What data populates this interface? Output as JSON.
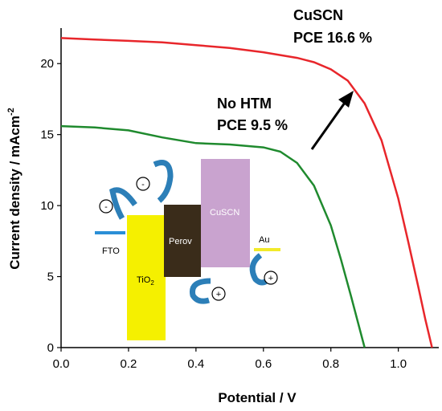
{
  "chart_data": {
    "type": "line",
    "xlabel": "Potential / V",
    "ylabel": "Current density / mAcm",
    "ylabel_sup": "-2",
    "xlim": [
      0.0,
      1.12
    ],
    "ylim": [
      0,
      22.5
    ],
    "xticks": [
      "0.0",
      "0.2",
      "0.4",
      "0.6",
      "0.8",
      "1.0"
    ],
    "xtick_values": [
      0.0,
      0.2,
      0.4,
      0.6,
      0.8,
      1.0
    ],
    "yticks": [
      "0",
      "5",
      "10",
      "15",
      "20"
    ],
    "ytick_values": [
      0,
      5,
      10,
      15,
      20
    ],
    "grid": false,
    "series": [
      {
        "color": "#e8262b",
        "x": [
          0.0,
          0.1,
          0.2,
          0.3,
          0.4,
          0.5,
          0.6,
          0.7,
          0.75,
          0.8,
          0.85,
          0.9,
          0.95,
          1.0,
          1.03,
          1.06,
          1.08,
          1.1
        ],
        "y": [
          21.8,
          21.7,
          21.6,
          21.5,
          21.3,
          21.1,
          20.8,
          20.4,
          20.1,
          19.6,
          18.8,
          17.2,
          14.6,
          10.5,
          7.4,
          4.2,
          2.0,
          0
        ]
      },
      {
        "color": "#1f8a2e",
        "x": [
          0.0,
          0.1,
          0.2,
          0.3,
          0.4,
          0.5,
          0.6,
          0.65,
          0.7,
          0.75,
          0.8,
          0.83,
          0.86,
          0.88,
          0.9
        ],
        "y": [
          15.6,
          15.5,
          15.3,
          14.8,
          14.4,
          14.3,
          14.1,
          13.8,
          13.0,
          11.4,
          8.6,
          6.2,
          3.6,
          1.8,
          0
        ]
      }
    ],
    "annotations": [
      {
        "line1": "CuSCN",
        "line2": "PCE 16.6 %"
      },
      {
        "line1": "No HTM",
        "line2": "PCE 9.5 %"
      }
    ],
    "inset": {
      "labels": [
        "FTO",
        "TiO",
        "Perov",
        "CuSCN",
        "Au"
      ],
      "tio2_sub": "2",
      "electron_symbol": "-",
      "hole_symbol": "+",
      "colors": {
        "fto": "#2a8fd6",
        "tio2": "#f5f000",
        "perov": "#3a2c1a",
        "cuscn": "#c9a3cf",
        "au": "#f2ea2a",
        "arrow": "#2c7fb8"
      }
    }
  }
}
